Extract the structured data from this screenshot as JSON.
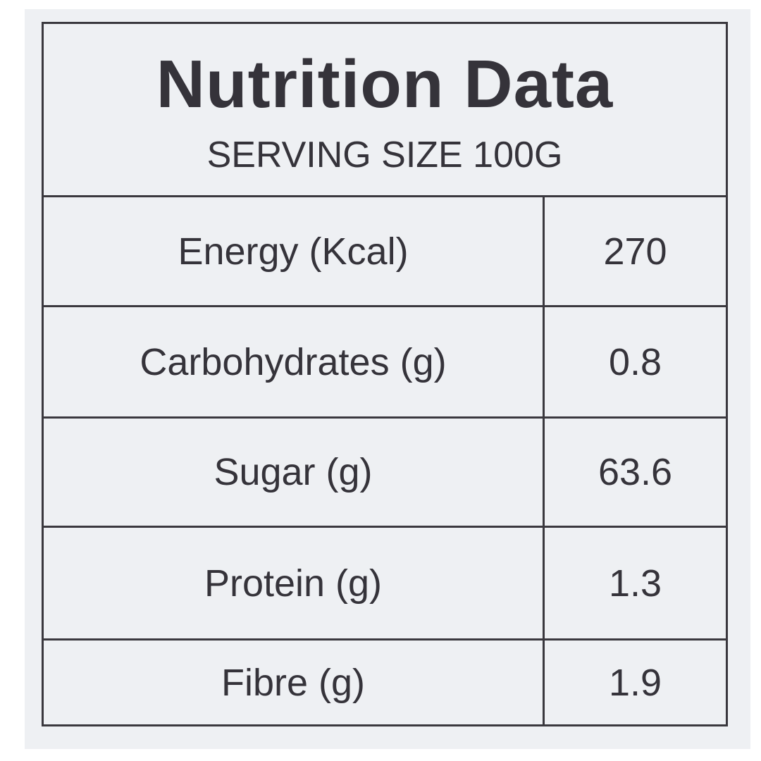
{
  "title": "Nutrition Data",
  "serving_size": "SERVING SIZE 100G",
  "rows": [
    {
      "label": "Energy (Kcal)",
      "value": "270"
    },
    {
      "label": "Carbohydrates (g)",
      "value": "0.8"
    },
    {
      "label": "Sugar (g)",
      "value": "63.6"
    },
    {
      "label": "Protein (g)",
      "value": "1.3"
    },
    {
      "label": "Fibre (g)",
      "value": "1.9"
    }
  ]
}
